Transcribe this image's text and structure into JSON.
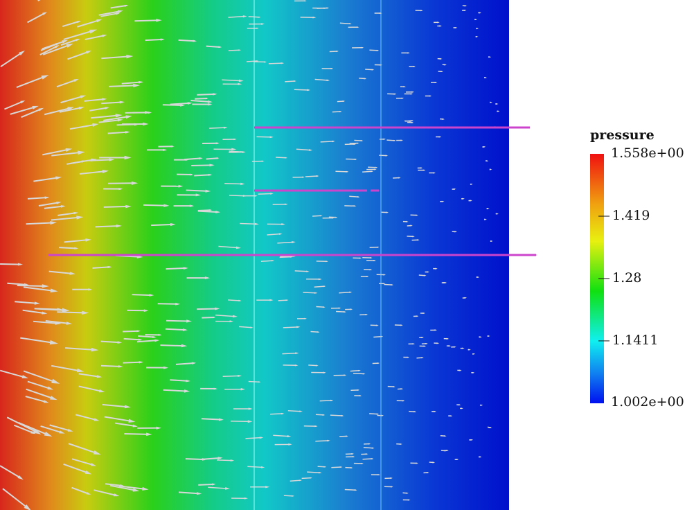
{
  "colorbar": {
    "title": "pressure",
    "max": {
      "value": 1.558,
      "label": "1.558e+00"
    },
    "min": {
      "value": 1.002,
      "label": "1.002e+00"
    },
    "ticks": [
      {
        "value": 1.419,
        "label": "1.419"
      },
      {
        "value": 1.28,
        "label": "1.28"
      },
      {
        "value": 1.1411,
        "label": "1.1411"
      }
    ]
  }
}
